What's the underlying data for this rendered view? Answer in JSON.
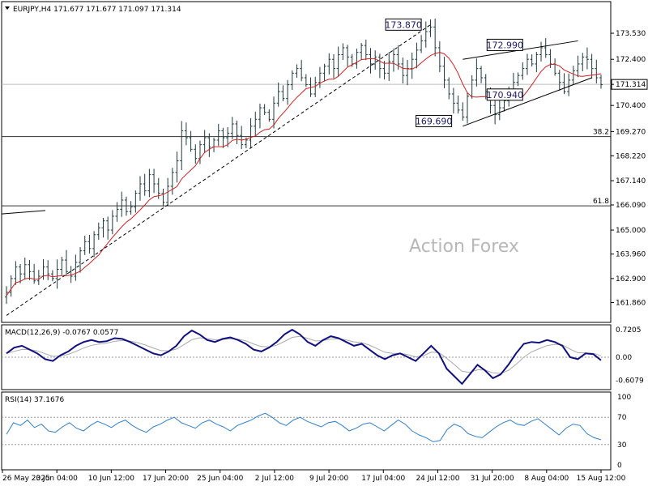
{
  "header": {
    "symbol_line": "EURJPY,H4  171.677 171.677 171.097 171.314"
  },
  "watermark": "Action Forex",
  "chart_data": [
    {
      "type": "candlestick",
      "title": "EURJPY,H4",
      "ohlc_readout": {
        "open": 171.677,
        "high": 171.677,
        "low": 171.097,
        "close": 171.314
      },
      "ylim": [
        161.0,
        174.9
      ],
      "y_ticks": [
        "173.530",
        "172.400",
        "171.314",
        "170.400",
        "169.270",
        "168.220",
        "167.140",
        "166.090",
        "165.000",
        "163.960",
        "162.900",
        "161.860"
      ],
      "y_tick_values": [
        173.53,
        172.4,
        171.314,
        170.4,
        169.27,
        168.22,
        167.14,
        166.09,
        165.0,
        163.96,
        162.9,
        161.86
      ],
      "current_price": 171.314,
      "x_ticks": [
        "26 May 2025",
        "3 Jun 04:00",
        "10 Jun 12:00",
        "17 Jun 20:00",
        "25 Jun 04:00",
        "2 Jul 12:00",
        "9 Jul 20:00",
        "17 Jul 04:00",
        "24 Jul 12:00",
        "31 Jul 20:00",
        "8 Aug 04:00",
        "15 Aug 12:00"
      ],
      "annotations": [
        {
          "text": "173.870",
          "value": 173.87
        },
        {
          "text": "172.990",
          "value": 172.99
        },
        {
          "text": "170.940",
          "value": 170.94
        },
        {
          "text": "169.690",
          "value": 169.69
        }
      ],
      "fib_levels": [
        {
          "label": "38.2",
          "value": 169.05
        },
        {
          "label": "61.8",
          "value": 166.05
        }
      ],
      "close_path": [
        162.3,
        162.9,
        163.4,
        163.1,
        163.5,
        163.2,
        162.8,
        163.0,
        163.4,
        163.1,
        162.9,
        163.3,
        163.7,
        163.2,
        163.0,
        163.6,
        164.1,
        164.5,
        164.2,
        164.8,
        165.1,
        165.4,
        165.0,
        165.6,
        165.9,
        166.3,
        165.8,
        166.0,
        166.6,
        167.0,
        166.7,
        167.4,
        167.0,
        166.6,
        166.2,
        166.9,
        167.5,
        168.0,
        169.3,
        169.0,
        168.5,
        168.1,
        168.7,
        169.0,
        168.6,
        168.9,
        169.3,
        169.0,
        169.2,
        169.6,
        169.1,
        168.7,
        168.9,
        169.5,
        169.8,
        170.3,
        170.1,
        169.8,
        170.5,
        171.0,
        170.7,
        171.3,
        171.8,
        172.0,
        171.6,
        171.3,
        170.9,
        171.4,
        171.8,
        172.1,
        172.4,
        172.0,
        172.6,
        172.9,
        172.5,
        172.2,
        172.7,
        173.0,
        172.6,
        172.2,
        172.5,
        172.0,
        171.8,
        172.3,
        172.6,
        172.2,
        171.7,
        172.0,
        172.4,
        172.8,
        173.2,
        173.6,
        173.8,
        172.9,
        172.1,
        171.5,
        170.9,
        170.5,
        170.2,
        169.9,
        170.8,
        171.5,
        172.0,
        171.6,
        171.0,
        170.4,
        170.0,
        170.3,
        170.6,
        171.0,
        171.4,
        171.7,
        172.0,
        172.4,
        172.2,
        172.6,
        172.9,
        172.6,
        172.2,
        171.8,
        171.4,
        171.0,
        171.5,
        171.9,
        172.2,
        172.5,
        172.4,
        172.0,
        171.6,
        171.3
      ]
    },
    {
      "type": "line",
      "title": "MACD(12,26,9) -0.0767 0.0577",
      "ylim": [
        -0.85,
        0.85
      ],
      "y_ticks": [
        "0.7205",
        "0.00",
        "-0.6079"
      ],
      "y_tick_values": [
        0.7205,
        0.0,
        -0.6079
      ],
      "series": [
        {
          "name": "MACD",
          "values": [
            0.1,
            0.25,
            0.3,
            0.2,
            0.1,
            -0.05,
            -0.1,
            0.05,
            0.15,
            0.3,
            0.4,
            0.45,
            0.4,
            0.42,
            0.5,
            0.48,
            0.4,
            0.3,
            0.2,
            0.1,
            0.05,
            0.15,
            0.3,
            0.55,
            0.7,
            0.6,
            0.45,
            0.4,
            0.48,
            0.52,
            0.45,
            0.35,
            0.2,
            0.15,
            0.25,
            0.4,
            0.6,
            0.72,
            0.6,
            0.4,
            0.3,
            0.45,
            0.55,
            0.5,
            0.4,
            0.3,
            0.35,
            0.2,
            0.05,
            -0.05,
            0.05,
            0.1,
            0.0,
            -0.1,
            0.1,
            0.3,
            0.1,
            -0.3,
            -0.5,
            -0.7,
            -0.45,
            -0.2,
            -0.35,
            -0.55,
            -0.45,
            -0.2,
            0.1,
            0.35,
            0.4,
            0.38,
            0.45,
            0.4,
            0.3,
            0.0,
            -0.05,
            0.1,
            0.08,
            -0.08
          ]
        }
      ]
    },
    {
      "type": "line",
      "title": "RSI(14) 37.1676",
      "ylim": [
        0,
        100
      ],
      "y_ticks": [
        "100",
        "70",
        "30",
        "0"
      ],
      "y_tick_values": [
        100,
        70,
        30,
        0
      ],
      "series": [
        {
          "name": "RSI",
          "values": [
            45,
            62,
            58,
            66,
            55,
            60,
            50,
            48,
            56,
            62,
            54,
            50,
            58,
            64,
            60,
            55,
            62,
            66,
            58,
            52,
            48,
            56,
            60,
            66,
            70,
            62,
            58,
            54,
            62,
            66,
            60,
            56,
            50,
            58,
            62,
            66,
            72,
            76,
            70,
            62,
            58,
            66,
            70,
            64,
            60,
            56,
            62,
            64,
            58,
            50,
            54,
            60,
            62,
            56,
            50,
            58,
            66,
            60,
            50,
            44,
            40,
            34,
            36,
            52,
            60,
            56,
            46,
            42,
            40,
            48,
            56,
            62,
            66,
            60,
            58,
            64,
            68,
            60,
            52,
            44,
            54,
            60,
            58,
            46,
            40,
            37
          ]
        }
      ]
    }
  ]
}
